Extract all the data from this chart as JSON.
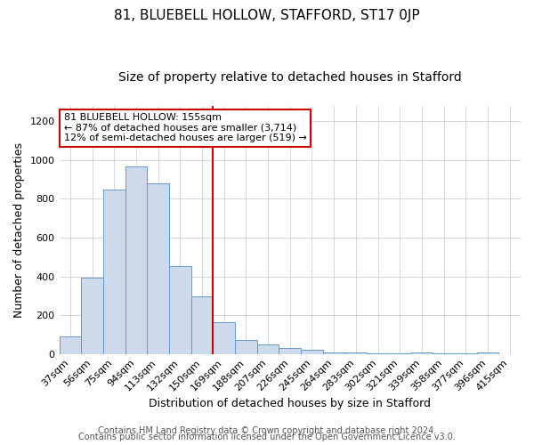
{
  "title": "81, BLUEBELL HOLLOW, STAFFORD, ST17 0JP",
  "subtitle": "Size of property relative to detached houses in Stafford",
  "xlabel": "Distribution of detached houses by size in Stafford",
  "ylabel": "Number of detached properties",
  "categories": [
    "37sqm",
    "56sqm",
    "75sqm",
    "94sqm",
    "113sqm",
    "132sqm",
    "150sqm",
    "169sqm",
    "188sqm",
    "207sqm",
    "226sqm",
    "245sqm",
    "264sqm",
    "283sqm",
    "302sqm",
    "321sqm",
    "339sqm",
    "358sqm",
    "377sqm",
    "396sqm",
    "415sqm"
  ],
  "values": [
    90,
    395,
    848,
    965,
    880,
    455,
    295,
    163,
    70,
    50,
    33,
    22,
    10,
    7,
    5,
    3,
    8,
    2,
    3,
    10,
    0
  ],
  "bar_color": "#ccdaec",
  "bar_edge_color": "#6699cc",
  "vline_color": "#cc0000",
  "annotation_text": "81 BLUEBELL HOLLOW: 155sqm\n← 87% of detached houses are smaller (3,714)\n12% of semi-detached houses are larger (519) →",
  "annotation_box_facecolor": "#ffffff",
  "annotation_box_edgecolor": "#cc0000",
  "ylim": [
    0,
    1280
  ],
  "yticks": [
    0,
    200,
    400,
    600,
    800,
    1000,
    1200
  ],
  "footer_line1": "Contains HM Land Registry data © Crown copyright and database right 2024.",
  "footer_line2": "Contains public sector information licensed under the Open Government Licence v3.0.",
  "background_color": "#ffffff",
  "plot_background_color": "#ffffff",
  "title_fontsize": 11,
  "subtitle_fontsize": 10,
  "axis_label_fontsize": 9,
  "tick_fontsize": 8,
  "annotation_fontsize": 8,
  "footer_fontsize": 7
}
